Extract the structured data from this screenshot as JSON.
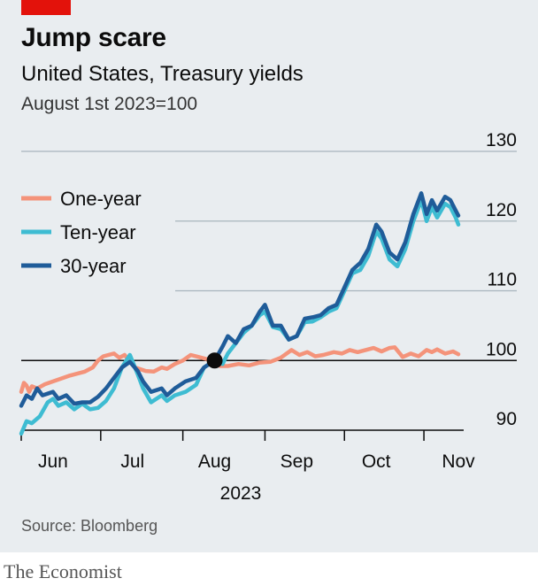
{
  "header": {
    "title": "Jump scare",
    "subtitle": "United States, Treasury yields",
    "index_note": "August 1st 2023=100"
  },
  "footer": {
    "source": "Source: Bloomberg",
    "brand": "The Economist"
  },
  "colors": {
    "accent_bar": "#e3120b",
    "one_year": "#f4937a",
    "ten_year": "#3ebcd2",
    "thirty_year": "#1f5c99",
    "marker": "#0c0c0c",
    "background": "#e9edf0"
  },
  "chart_data": {
    "type": "line",
    "title": "Jump scare",
    "subtitle": "United States, Treasury yields",
    "ylabel": "August 1st 2023=100",
    "ylim": [
      90,
      130
    ],
    "yticks": [
      90,
      100,
      110,
      120,
      130
    ],
    "x_range": [
      "2023-05-20",
      "2023-11-01"
    ],
    "x_ticks": [
      {
        "label": "Jun",
        "date": "2023-06-01",
        "tick": "2023-05-20"
      },
      {
        "label": "Jul",
        "date": "2023-07-01",
        "tick": "2023-06-19"
      },
      {
        "label": "Aug",
        "date": "2023-08-01",
        "tick": "2023-07-20"
      },
      {
        "label": "Sep",
        "date": "2023-09-01",
        "tick": "2023-08-20"
      },
      {
        "label": "Oct",
        "date": "2023-10-01",
        "tick": "2023-09-19"
      },
      {
        "label": "Nov",
        "date": "2023-11-01",
        "tick": "2023-10-19"
      }
    ],
    "year_label": "2023",
    "grid": true,
    "legend_position": "top-left",
    "baseline_value": 100,
    "marker": {
      "date": "2023-08-01",
      "value": 100
    },
    "series": [
      {
        "name": "One-year",
        "color": "#f4937a",
        "points": [
          [
            "2023-05-20",
            95.5
          ],
          [
            "2023-05-21",
            96.8
          ],
          [
            "2023-05-22",
            96.4
          ],
          [
            "2023-05-23",
            95.5
          ],
          [
            "2023-05-24",
            96.3
          ],
          [
            "2023-05-26",
            96.0
          ],
          [
            "2023-05-29",
            96.6
          ],
          [
            "2023-06-01",
            97.0
          ],
          [
            "2023-06-04",
            97.4
          ],
          [
            "2023-06-07",
            97.8
          ],
          [
            "2023-06-10",
            98.1
          ],
          [
            "2023-06-13",
            98.4
          ],
          [
            "2023-06-16",
            99.0
          ],
          [
            "2023-06-18",
            100.0
          ],
          [
            "2023-06-20",
            100.6
          ],
          [
            "2023-06-24",
            101.0
          ],
          [
            "2023-06-26",
            100.4
          ],
          [
            "2023-06-28",
            100.8
          ],
          [
            "2023-06-30",
            99.8
          ],
          [
            "2023-07-02",
            99.0
          ],
          [
            "2023-07-06",
            98.5
          ],
          [
            "2023-07-09",
            98.4
          ],
          [
            "2023-07-12",
            99.0
          ],
          [
            "2023-07-14",
            98.8
          ],
          [
            "2023-07-17",
            99.5
          ],
          [
            "2023-07-20",
            100.0
          ],
          [
            "2023-07-23",
            100.8
          ],
          [
            "2023-07-26",
            100.5
          ],
          [
            "2023-07-29",
            100.2
          ],
          [
            "2023-08-01",
            100.0
          ],
          [
            "2023-08-03",
            99.2
          ],
          [
            "2023-08-06",
            99.2
          ],
          [
            "2023-08-10",
            99.5
          ],
          [
            "2023-08-14",
            99.3
          ],
          [
            "2023-08-18",
            99.7
          ],
          [
            "2023-08-22",
            99.8
          ],
          [
            "2023-08-26",
            100.4
          ],
          [
            "2023-08-30",
            101.5
          ],
          [
            "2023-09-02",
            100.8
          ],
          [
            "2023-09-05",
            101.2
          ],
          [
            "2023-09-08",
            100.6
          ],
          [
            "2023-09-11",
            100.8
          ],
          [
            "2023-09-15",
            101.2
          ],
          [
            "2023-09-18",
            101.0
          ],
          [
            "2023-09-21",
            101.5
          ],
          [
            "2023-09-24",
            101.2
          ],
          [
            "2023-09-27",
            101.5
          ],
          [
            "2023-09-30",
            101.8
          ],
          [
            "2023-10-03",
            101.3
          ],
          [
            "2023-10-06",
            101.8
          ],
          [
            "2023-10-08",
            101.9
          ],
          [
            "2023-10-11",
            100.5
          ],
          [
            "2023-10-14",
            101.0
          ],
          [
            "2023-10-17",
            100.6
          ],
          [
            "2023-10-20",
            101.5
          ],
          [
            "2023-10-22",
            101.2
          ],
          [
            "2023-10-24",
            101.6
          ],
          [
            "2023-10-27",
            101.0
          ],
          [
            "2023-10-30",
            101.3
          ],
          [
            "2023-11-01",
            100.9
          ]
        ]
      },
      {
        "name": "Ten-year",
        "color": "#3ebcd2",
        "points": [
          [
            "2023-05-20",
            89.5
          ],
          [
            "2023-05-22",
            91.3
          ],
          [
            "2023-05-24",
            91.0
          ],
          [
            "2023-05-27",
            92.0
          ],
          [
            "2023-05-30",
            94.0
          ],
          [
            "2023-06-01",
            94.5
          ],
          [
            "2023-06-03",
            93.5
          ],
          [
            "2023-06-06",
            94.0
          ],
          [
            "2023-06-09",
            93.0
          ],
          [
            "2023-06-12",
            93.8
          ],
          [
            "2023-06-15",
            93.0
          ],
          [
            "2023-06-18",
            93.2
          ],
          [
            "2023-06-21",
            94.2
          ],
          [
            "2023-06-24",
            96.0
          ],
          [
            "2023-06-27",
            99.0
          ],
          [
            "2023-06-30",
            100.8
          ],
          [
            "2023-07-03",
            98.0
          ],
          [
            "2023-07-05",
            96.0
          ],
          [
            "2023-07-08",
            94.0
          ],
          [
            "2023-07-12",
            95.0
          ],
          [
            "2023-07-14",
            94.2
          ],
          [
            "2023-07-17",
            95.0
          ],
          [
            "2023-07-21",
            95.5
          ],
          [
            "2023-07-25",
            96.5
          ],
          [
            "2023-07-28",
            99.0
          ],
          [
            "2023-08-01",
            100.0
          ],
          [
            "2023-08-04",
            99.5
          ],
          [
            "2023-08-06",
            101.0
          ],
          [
            "2023-08-09",
            102.5
          ],
          [
            "2023-08-12",
            104.0
          ],
          [
            "2023-08-15",
            105.0
          ],
          [
            "2023-08-18",
            106.5
          ],
          [
            "2023-08-20",
            107.0
          ],
          [
            "2023-08-23",
            104.8
          ],
          [
            "2023-08-26",
            104.5
          ],
          [
            "2023-08-29",
            103.0
          ],
          [
            "2023-09-01",
            103.5
          ],
          [
            "2023-09-04",
            105.5
          ],
          [
            "2023-09-07",
            105.6
          ],
          [
            "2023-09-10",
            106.2
          ],
          [
            "2023-09-13",
            107.0
          ],
          [
            "2023-09-16",
            107.5
          ],
          [
            "2023-09-19",
            110.0
          ],
          [
            "2023-09-22",
            112.5
          ],
          [
            "2023-09-25",
            113.0
          ],
          [
            "2023-09-28",
            115.0
          ],
          [
            "2023-10-01",
            118.5
          ],
          [
            "2023-10-03",
            117.5
          ],
          [
            "2023-10-06",
            114.5
          ],
          [
            "2023-10-09",
            113.5
          ],
          [
            "2023-10-12",
            116.0
          ],
          [
            "2023-10-15",
            120.0
          ],
          [
            "2023-10-18",
            123.0
          ],
          [
            "2023-10-20",
            120.0
          ],
          [
            "2023-10-22",
            122.0
          ],
          [
            "2023-10-24",
            120.5
          ],
          [
            "2023-10-27",
            122.5
          ],
          [
            "2023-10-29",
            122.0
          ],
          [
            "2023-10-31",
            120.5
          ],
          [
            "2023-11-01",
            119.5
          ]
        ]
      },
      {
        "name": "30-year",
        "color": "#1f5c99",
        "points": [
          [
            "2023-05-20",
            93.5
          ],
          [
            "2023-05-22",
            95.0
          ],
          [
            "2023-05-24",
            94.5
          ],
          [
            "2023-05-26",
            96.0
          ],
          [
            "2023-05-28",
            95.0
          ],
          [
            "2023-06-01",
            95.5
          ],
          [
            "2023-06-03",
            94.5
          ],
          [
            "2023-06-06",
            95.0
          ],
          [
            "2023-06-09",
            93.8
          ],
          [
            "2023-06-12",
            94.0
          ],
          [
            "2023-06-15",
            94.0
          ],
          [
            "2023-06-18",
            94.8
          ],
          [
            "2023-06-21",
            96.0
          ],
          [
            "2023-06-24",
            97.5
          ],
          [
            "2023-06-27",
            99.0
          ],
          [
            "2023-06-30",
            99.8
          ],
          [
            "2023-07-03",
            98.5
          ],
          [
            "2023-07-05",
            97.0
          ],
          [
            "2023-07-08",
            95.5
          ],
          [
            "2023-07-12",
            96.0
          ],
          [
            "2023-07-14",
            95.0
          ],
          [
            "2023-07-17",
            96.0
          ],
          [
            "2023-07-21",
            97.0
          ],
          [
            "2023-07-25",
            97.5
          ],
          [
            "2023-07-28",
            99.0
          ],
          [
            "2023-08-01",
            100.0
          ],
          [
            "2023-08-04",
            102.0
          ],
          [
            "2023-08-06",
            103.5
          ],
          [
            "2023-08-09",
            102.5
          ],
          [
            "2023-08-12",
            104.5
          ],
          [
            "2023-08-15",
            105.0
          ],
          [
            "2023-08-18",
            107.0
          ],
          [
            "2023-08-20",
            108.0
          ],
          [
            "2023-08-23",
            105.0
          ],
          [
            "2023-08-26",
            105.0
          ],
          [
            "2023-08-29",
            103.0
          ],
          [
            "2023-09-01",
            103.5
          ],
          [
            "2023-09-04",
            106.0
          ],
          [
            "2023-09-07",
            106.2
          ],
          [
            "2023-09-10",
            106.5
          ],
          [
            "2023-09-13",
            107.5
          ],
          [
            "2023-09-16",
            108.0
          ],
          [
            "2023-09-19",
            110.5
          ],
          [
            "2023-09-22",
            113.0
          ],
          [
            "2023-09-25",
            114.0
          ],
          [
            "2023-09-28",
            116.0
          ],
          [
            "2023-10-01",
            119.5
          ],
          [
            "2023-10-03",
            118.5
          ],
          [
            "2023-10-06",
            115.5
          ],
          [
            "2023-10-09",
            114.5
          ],
          [
            "2023-10-12",
            117.0
          ],
          [
            "2023-10-15",
            121.0
          ],
          [
            "2023-10-18",
            124.0
          ],
          [
            "2023-10-20",
            121.0
          ],
          [
            "2023-10-22",
            123.0
          ],
          [
            "2023-10-24",
            121.5
          ],
          [
            "2023-10-27",
            123.5
          ],
          [
            "2023-10-29",
            123.0
          ],
          [
            "2023-10-31",
            121.5
          ],
          [
            "2023-11-01",
            120.8
          ]
        ]
      }
    ]
  }
}
